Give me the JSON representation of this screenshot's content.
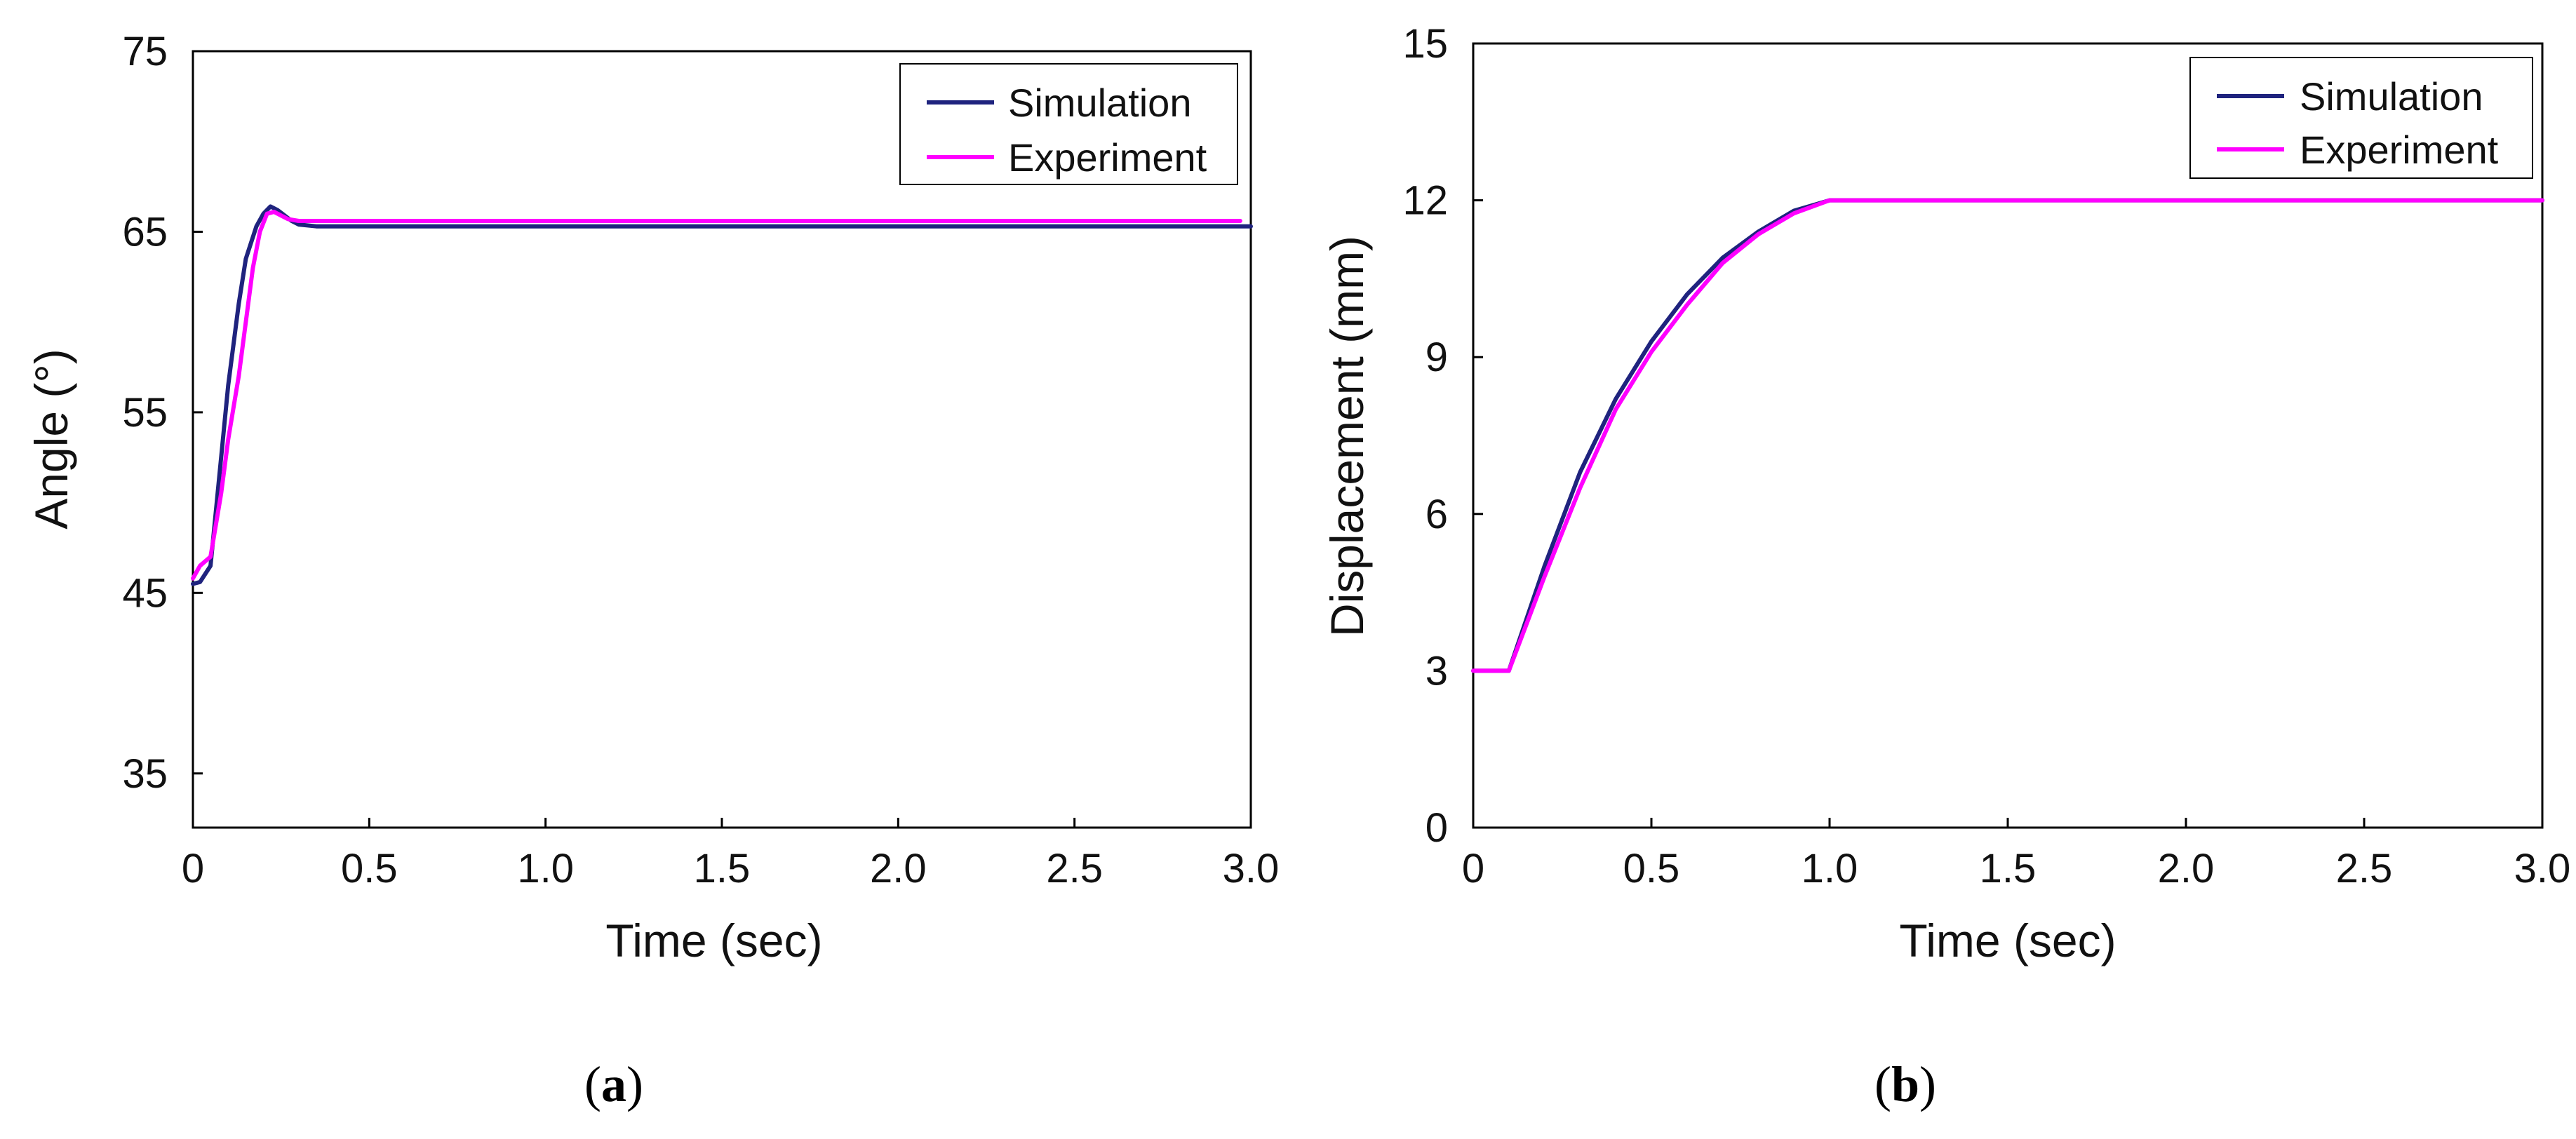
{
  "colors": {
    "simulation": "#1f237e",
    "experiment": "#ff00ff",
    "axis": "#000000",
    "background": "#ffffff"
  },
  "chart_data": [
    {
      "panel": "a",
      "type": "line",
      "caption_open": "(",
      "caption_letter": "a",
      "caption_close": ")",
      "xlabel": "Time (sec)",
      "ylabel": "Angle (°)",
      "xlim": [
        0,
        3.0
      ],
      "ylim": [
        32,
        75
      ],
      "xticks": [
        0,
        0.5,
        1.0,
        1.5,
        2.0,
        2.5,
        3.0
      ],
      "xtick_labels": [
        "0",
        "0.5",
        "1.0",
        "1.5",
        "2.0",
        "2.5",
        "3.0"
      ],
      "yticks": [
        35,
        45,
        55,
        65,
        75
      ],
      "ytick_labels": [
        "35",
        "45",
        "55",
        "65",
        "75"
      ],
      "legend_position": "top-right",
      "series": [
        {
          "name": "Simulation",
          "x": [
            0,
            0.02,
            0.05,
            0.07,
            0.1,
            0.13,
            0.15,
            0.18,
            0.2,
            0.22,
            0.24,
            0.26,
            0.28,
            0.3,
            0.35,
            0.5,
            1.0,
            1.5,
            2.0,
            2.5,
            3.0
          ],
          "y": [
            45.5,
            45.6,
            46.5,
            50.5,
            56.5,
            61.0,
            63.5,
            65.3,
            66.0,
            66.4,
            66.2,
            65.9,
            65.6,
            65.4,
            65.3,
            65.3,
            65.3,
            65.3,
            65.3,
            65.3,
            65.3
          ]
        },
        {
          "name": "Experiment",
          "x": [
            0,
            0.02,
            0.05,
            0.08,
            0.1,
            0.13,
            0.15,
            0.17,
            0.19,
            0.21,
            0.23,
            0.25,
            0.27,
            0.3,
            0.35,
            0.5,
            1.0,
            1.5,
            2.0,
            2.5,
            2.97
          ],
          "y": [
            45.8,
            46.5,
            47.0,
            50.5,
            53.5,
            57.0,
            60.0,
            63.0,
            65.0,
            66.0,
            66.1,
            65.9,
            65.7,
            65.6,
            65.6,
            65.6,
            65.6,
            65.6,
            65.6,
            65.6,
            65.6
          ]
        }
      ]
    },
    {
      "panel": "b",
      "type": "line",
      "caption_open": "(",
      "caption_letter": "b",
      "caption_close": ")",
      "xlabel": "Time (sec)",
      "ylabel": "Displacement (mm)",
      "xlim": [
        0,
        3.0
      ],
      "ylim": [
        0,
        15
      ],
      "xticks": [
        0,
        0.5,
        1.0,
        1.5,
        2.0,
        2.5,
        3.0
      ],
      "xtick_labels": [
        "0",
        "0.5",
        "1.0",
        "1.5",
        "2.0",
        "2.5",
        "3.0"
      ],
      "yticks": [
        0,
        3,
        6,
        9,
        12,
        15
      ],
      "ytick_labels": [
        "0",
        "3",
        "6",
        "9",
        "12",
        "15"
      ],
      "legend_position": "top-right",
      "series": [
        {
          "name": "Simulation",
          "x": [
            0,
            0.1,
            0.2,
            0.3,
            0.4,
            0.5,
            0.6,
            0.7,
            0.8,
            0.9,
            1.0,
            1.5,
            2.0,
            2.5,
            3.0
          ],
          "y": [
            3.0,
            3.0,
            5.0,
            6.8,
            8.2,
            9.3,
            10.2,
            10.9,
            11.4,
            11.8,
            12.0,
            12.0,
            12.0,
            12.0,
            12.0
          ]
        },
        {
          "name": "Experiment",
          "x": [
            0,
            0.1,
            0.2,
            0.3,
            0.4,
            0.5,
            0.6,
            0.7,
            0.8,
            0.9,
            1.0,
            1.5,
            2.0,
            2.5,
            3.0
          ],
          "y": [
            3.0,
            3.0,
            4.8,
            6.5,
            8.0,
            9.1,
            10.0,
            10.8,
            11.35,
            11.75,
            12.0,
            12.0,
            12.0,
            12.0,
            12.0
          ]
        }
      ]
    }
  ]
}
